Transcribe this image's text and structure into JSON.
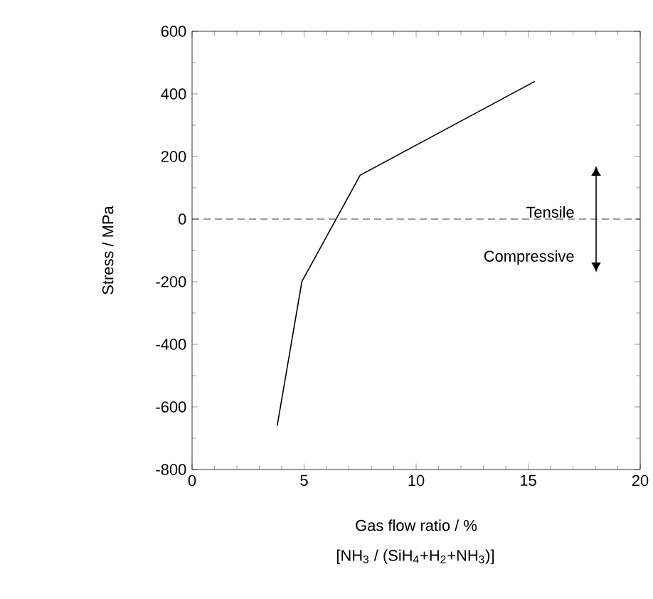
{
  "chart_data": {
    "type": "line",
    "xlabel": "Gas flow ratio / %",
    "ylabel": "Stress / MPa",
    "x": [
      3.8,
      4.9,
      7.5,
      15.3
    ],
    "values": [
      -660,
      -200,
      140,
      440
    ],
    "color": "#000000",
    "xlim": [
      0,
      20
    ],
    "xticks": [
      0,
      5,
      10,
      15,
      20
    ],
    "ylim": [
      -800,
      600
    ],
    "yticks": [
      -800,
      -600,
      -400,
      -200,
      0,
      200,
      400,
      600
    ],
    "ref_lines": [
      {
        "axis": "y",
        "value": 0,
        "line_style": "dashed",
        "color": "#000000"
      }
    ],
    "annotations": [
      "[NH$_{3}$ / (SiH$_{4}$+H$_{2}$+NH$_{3}$)]",
      "Tensile",
      "Compressive"
    ],
    "grid": false,
    "line_style": "solid"
  }
}
